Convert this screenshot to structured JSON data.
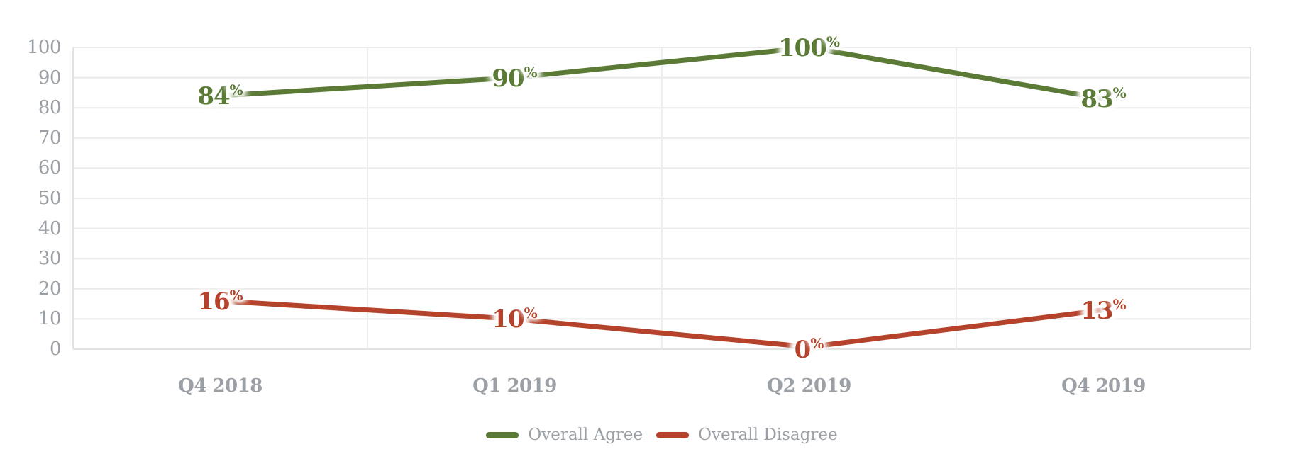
{
  "chart_data": {
    "type": "line",
    "categories": [
      "Q4 2018",
      "Q1 2019",
      "Q2 2019",
      "Q4 2019"
    ],
    "series": [
      {
        "name": "Overall Agree",
        "values": [
          84,
          90,
          100,
          83
        ],
        "color": "#5a7a35"
      },
      {
        "name": "Overall Disagree",
        "values": [
          16,
          10,
          0,
          13
        ],
        "color": "#b5422a"
      }
    ],
    "value_suffix": "%",
    "data_labels_visible": true,
    "y_axis": {
      "min": 0,
      "max": 100,
      "tick_step": 10,
      "ticks": [
        0,
        10,
        20,
        30,
        40,
        50,
        60,
        70,
        80,
        90,
        100
      ]
    },
    "grid": {
      "horizontal": true,
      "vertical": true
    },
    "legend": {
      "position": "bottom",
      "entries": [
        "Overall Agree",
        "Overall Disagree"
      ]
    }
  },
  "style": {
    "background": "#ffffff",
    "axis_text_color": "#9aa0a6",
    "grid_color": "#eaeaea",
    "vertical_grid_color": "#eeeeee",
    "axis_line_color": "#e2e2e2",
    "line_width": 7
  }
}
